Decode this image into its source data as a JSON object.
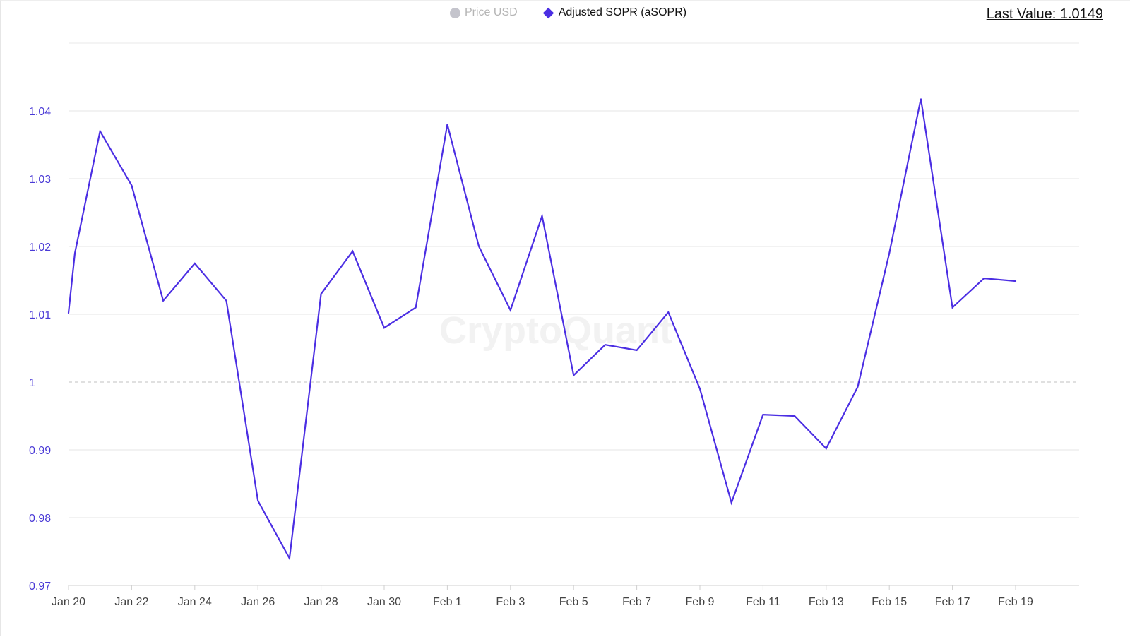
{
  "legend": {
    "items": [
      {
        "label": "Price USD",
        "color": "#c4c4cc",
        "marker": "circle-icon",
        "active": false
      },
      {
        "label": "Adjusted SOPR (aSOPR)",
        "color": "#4b2ee3",
        "marker": "diamond-icon",
        "active": true
      }
    ]
  },
  "last_value_label": "Last Value: 1.0149",
  "watermark": "CryptoQuant",
  "chart_data": {
    "type": "line",
    "title": "",
    "xlabel": "",
    "ylabel": "",
    "x_tick_labels": [
      "Jan 20",
      "Jan 22",
      "Jan 24",
      "Jan 26",
      "Jan 28",
      "Jan 30",
      "Feb 1",
      "Feb 3",
      "Feb 5",
      "Feb 7",
      "Feb 9",
      "Feb 11",
      "Feb 13",
      "Feb 15",
      "Feb 17",
      "Feb 19"
    ],
    "y_tick_labels": [
      "0.97",
      "0.98",
      "0.99",
      "1",
      "1.01",
      "1.02",
      "1.03",
      "1.04"
    ],
    "ylim": [
      0.97,
      1.05
    ],
    "reference_line": 1,
    "grid": true,
    "legend_position": "top-center",
    "series": [
      {
        "name": "Adjusted SOPR (aSOPR)",
        "color": "#4b2ee3",
        "points": [
          [
            "Jan 20",
            1.0102
          ],
          [
            "Jan 20",
            1.019
          ],
          [
            "Jan 21",
            1.037
          ],
          [
            "Jan 22",
            1.029
          ],
          [
            "Jan 23",
            1.012
          ],
          [
            "Jan 24",
            1.0175
          ],
          [
            "Jan 25",
            1.012
          ],
          [
            "Jan 26",
            0.9825
          ],
          [
            "Jan 27",
            0.974
          ],
          [
            "Jan 28",
            1.013
          ],
          [
            "Jan 29",
            1.0193
          ],
          [
            "Jan 30",
            1.008
          ],
          [
            "Jan 31",
            1.011
          ],
          [
            "Feb 1",
            1.038
          ],
          [
            "Feb 2",
            1.02
          ],
          [
            "Feb 3",
            1.0106
          ],
          [
            "Feb 4",
            1.0245
          ],
          [
            "Feb 5",
            1.001
          ],
          [
            "Feb 6",
            1.0055
          ],
          [
            "Feb 7",
            1.0047
          ],
          [
            "Feb 8",
            1.0103
          ],
          [
            "Feb 9",
            0.999
          ],
          [
            "Feb 10",
            0.9822
          ],
          [
            "Feb 11",
            0.9952
          ],
          [
            "Feb 12",
            0.995
          ],
          [
            "Feb 13",
            0.9902
          ],
          [
            "Feb 14",
            0.9993
          ],
          [
            "Feb 15",
            1.019
          ],
          [
            "Feb 16",
            1.0418
          ],
          [
            "Feb 17",
            1.011
          ],
          [
            "Feb 18",
            1.0153
          ],
          [
            "Feb 19",
            1.0149
          ]
        ]
      }
    ]
  }
}
